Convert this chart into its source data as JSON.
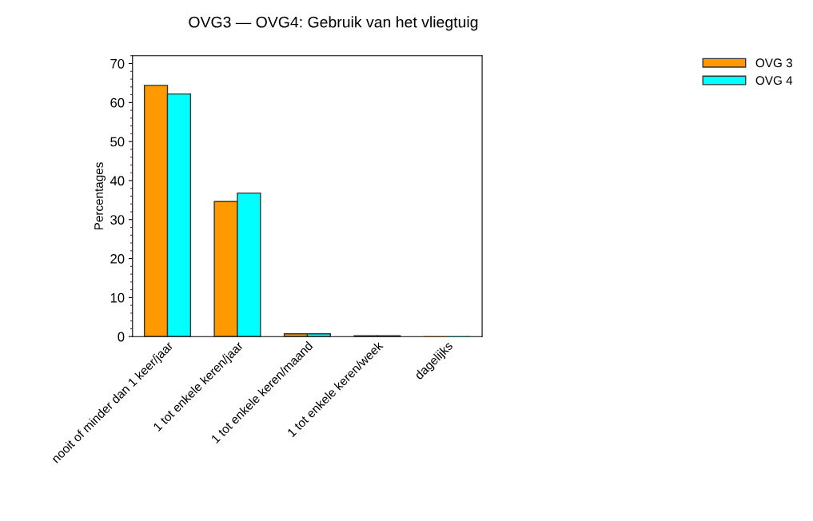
{
  "chart_data": {
    "type": "bar",
    "title": "OVG3 — OVG4: Gebruik van het vliegtuig",
    "ylabel": "Percentages",
    "categories": [
      "nooit of minder dan 1 keer/jaar",
      "1 tot enkele keren/jaar",
      "1 tot enkele keren/maand",
      "1 tot enkele keren/week",
      "dagelijks"
    ],
    "series": [
      {
        "name": "OVG 3",
        "color": "#ff9900",
        "values": [
          64.4,
          34.6,
          0.7,
          0.2,
          0
        ]
      },
      {
        "name": "OVG 4",
        "color": "#00ffff",
        "values": [
          62.2,
          36.8,
          0.7,
          0.2,
          0
        ]
      }
    ],
    "ylim": [
      0,
      72
    ],
    "yticks": [
      0,
      10,
      20,
      30,
      40,
      50,
      60,
      70
    ],
    "grid": false,
    "legend": "top right"
  }
}
